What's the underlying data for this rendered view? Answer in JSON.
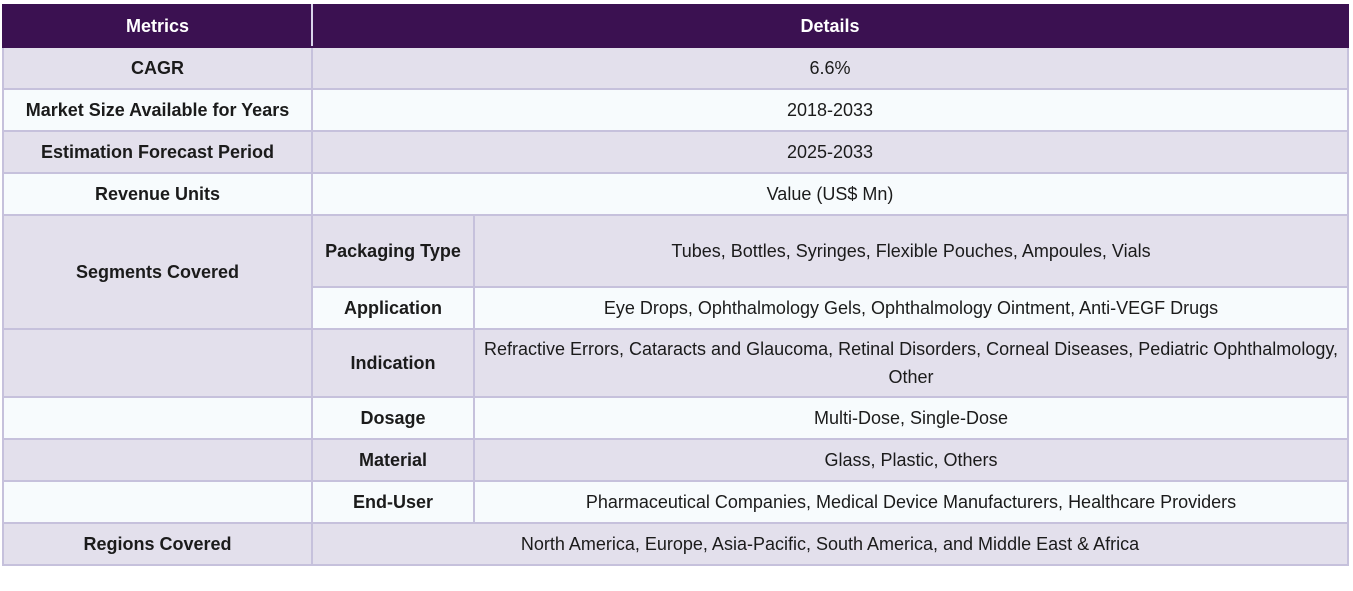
{
  "header": {
    "metrics": "Metrics",
    "details": "Details"
  },
  "rows": {
    "cagr": {
      "label": "CAGR",
      "value": "6.6%"
    },
    "market_size": {
      "label": "Market Size Available for Years",
      "value": "2018-2033"
    },
    "forecast": {
      "label": "Estimation Forecast Period",
      "value": "2025-2033"
    },
    "revenue_units": {
      "label": "Revenue Units",
      "value": "Value (US$ Mn)"
    },
    "segments_label": "Segments Covered",
    "packaging": {
      "label": "Packaging Type",
      "value": "Tubes, Bottles, Syringes, Flexible Pouches, Ampoules, Vials"
    },
    "application": {
      "label": "Application",
      "value": "Eye Drops, Ophthalmology Gels, Ophthalmology Ointment, Anti-VEGF Drugs"
    },
    "indication": {
      "label": "Indication",
      "value": "Refractive Errors, Cataracts and Glaucoma, Retinal Disorders, Corneal Diseases, Pediatric Ophthalmology, Other"
    },
    "dosage": {
      "label": "Dosage",
      "value": "Multi-Dose, Single-Dose"
    },
    "material": {
      "label": "Material",
      "value": "Glass, Plastic, Others"
    },
    "end_user": {
      "label": "End-User",
      "value": "Pharmaceutical Companies, Medical Device Manufacturers, Healthcare Providers"
    },
    "regions": {
      "label": "Regions Covered",
      "value": "North America, Europe, Asia-Pacific, South America, and Middle East & Africa"
    }
  }
}
